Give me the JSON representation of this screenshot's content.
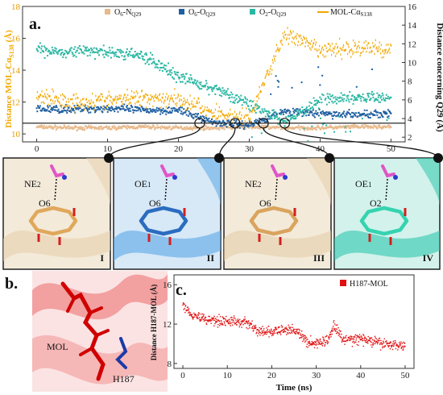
{
  "chart_data": [
    {
      "panel": "a.",
      "type": "scatter",
      "xlim": [
        -2,
        52
      ],
      "xticks": [
        "0",
        "10",
        "20",
        "30",
        "40",
        "50"
      ],
      "ylim_left": [
        9.5,
        18
      ],
      "yticks_left": [
        "10",
        "12",
        "14",
        "16",
        "18"
      ],
      "ylim_right": [
        1.5,
        16
      ],
      "yticks_right": [
        "2",
        "4",
        "6",
        "8",
        "10",
        "12",
        "14",
        "16"
      ],
      "ylabel_left_parts": [
        "Distance MOL-Cα",
        "S138",
        " (Å)"
      ],
      "ylabel_right": "Distance concerning Q29 (Å)",
      "legend": [
        {
          "sym": "O",
          "sub1": "6",
          "mid": "-N",
          "sub2": "Q29",
          "color": "#e8b98a",
          "marker": "square"
        },
        {
          "sym": "O",
          "sub1": "6",
          "mid": "-O",
          "sub2": "Q29",
          "color": "#1f5fa0",
          "marker": "square"
        },
        {
          "sym": "O",
          "sub1": "2",
          "mid": "-O",
          "sub2": "Q29",
          "color": "#2ab7a3",
          "marker": "square"
        },
        {
          "sym": "MOL-Cα",
          "sub1": "",
          "mid": "",
          "sub2": "S138",
          "color": "#f2a800",
          "marker": "line"
        }
      ],
      "reference_line_right_axis": 3.5,
      "highlighted_times_ns": [
        23,
        28,
        32,
        35
      ],
      "series": [
        {
          "name": "O6-NQ29",
          "axis": "right",
          "color": "#e8b98a",
          "x": [
            0,
            5,
            10,
            15,
            20,
            25,
            30,
            35,
            40,
            45,
            50
          ],
          "y": [
            3.1,
            3.0,
            3.0,
            3.1,
            3.0,
            3.0,
            3.1,
            3.0,
            3.0,
            3.1,
            3.1
          ]
        },
        {
          "name": "O6-OQ29",
          "axis": "right",
          "color": "#1f5fa0",
          "x": [
            0,
            5,
            10,
            15,
            20,
            25,
            30,
            35,
            40,
            45,
            50
          ],
          "y": [
            5.0,
            5.0,
            5.1,
            4.9,
            4.9,
            3.6,
            3.3,
            4.8,
            4.5,
            4.4,
            4.6
          ]
        },
        {
          "name": "O2-OQ29",
          "axis": "right",
          "color": "#2ab7a3",
          "x": [
            0,
            5,
            10,
            15,
            20,
            25,
            30,
            35,
            40,
            45,
            50
          ],
          "y": [
            11.3,
            11.2,
            11.1,
            10.7,
            8.5,
            7.2,
            5.6,
            3.5,
            6.0,
            6.3,
            6.2
          ]
        },
        {
          "name": "MOL-CαS138",
          "axis": "left",
          "color": "#f2a800",
          "x": [
            0,
            5,
            10,
            15,
            20,
            25,
            30,
            35,
            40,
            45,
            50
          ],
          "y": [
            12.4,
            12.0,
            12.1,
            12.3,
            12.2,
            11.3,
            11.0,
            16.3,
            15.2,
            15.4,
            15.3
          ]
        }
      ]
    },
    {
      "panel": "c.",
      "type": "scatter",
      "xlim": [
        -2,
        52
      ],
      "xticks": [
        "0",
        "10",
        "20",
        "30",
        "40",
        "50"
      ],
      "ylim": [
        7.5,
        17
      ],
      "yticks": [
        "8",
        "12",
        "16"
      ],
      "xlabel": "Time (ns)",
      "ylabel": "Distance H187-MOL (Å)",
      "legend": [
        {
          "name": "H187-MOL",
          "color": "#e01010"
        }
      ],
      "series": [
        {
          "name": "H187-MOL",
          "color": "#e01010",
          "x": [
            0,
            2,
            5,
            10,
            15,
            17,
            20,
            25,
            28,
            30,
            33,
            34,
            36,
            40,
            45,
            50
          ],
          "y": [
            14.0,
            13.0,
            12.5,
            12.3,
            12.1,
            11.2,
            11.2,
            11.5,
            10.2,
            10.0,
            10.5,
            12.0,
            10.4,
            10.5,
            10.0,
            9.8
          ]
        }
      ]
    }
  ],
  "snapshots": [
    {
      "roman": "I",
      "atoms": [
        "NE2",
        "O6"
      ],
      "bg": "#f3ead9"
    },
    {
      "roman": "II",
      "atoms": [
        "OE1",
        "O6"
      ],
      "bg": "#d7e8f7"
    },
    {
      "roman": "III",
      "atoms": [
        "NE2",
        "O6"
      ],
      "bg": "#f3ead9"
    },
    {
      "roman": "IV",
      "atoms": [
        "OE1",
        "O2"
      ],
      "bg": "#d3f2ec"
    }
  ],
  "panel_b": {
    "letter": "b.",
    "labels": [
      "MOL",
      "H187"
    ]
  }
}
